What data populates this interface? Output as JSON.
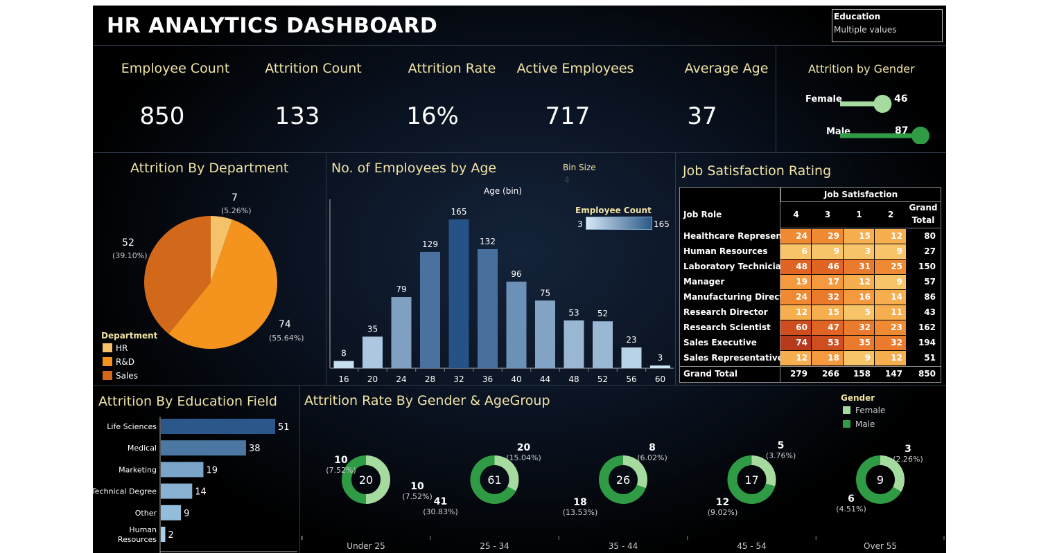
{
  "header": {
    "title": "HR ANALYTICS DASHBOARD"
  },
  "filter": {
    "label": "Education",
    "value": "Multiple values"
  },
  "kpis": [
    {
      "label": "Employee Count",
      "value": "850"
    },
    {
      "label": "Attrition Count",
      "value": "133"
    },
    {
      "label": "Attrition Rate",
      "value": "16%"
    },
    {
      "label": "Active Employees",
      "value": "717"
    },
    {
      "label": "Average Age",
      "value": "37"
    }
  ],
  "gender_panel": {
    "title": "Attrition by Gender",
    "rows": [
      {
        "label": "Female",
        "value": "46",
        "count": 46,
        "color": "#a6dba0"
      },
      {
        "label": "Male",
        "value": "87",
        "count": 87,
        "color": "#2f9b45"
      }
    ]
  },
  "department": {
    "title": "Attrition By Department",
    "legend_title": "Department",
    "slices": [
      {
        "name": "HR",
        "value": 7,
        "label": "7",
        "pct": "(5.26%)",
        "color": "#f6c16b"
      },
      {
        "name": "R&D",
        "value": 74,
        "label": "74",
        "pct": "(55.64%)",
        "color": "#f4941f"
      },
      {
        "name": "Sales",
        "value": 52,
        "label": "52",
        "pct": "(39.10%)",
        "color": "#d2691a"
      }
    ]
  },
  "age_chart": {
    "title": "No. of Employees by Age",
    "axis_title": "Age (bin)",
    "bin_size_label": "Bin Size",
    "bin_size_value": "4",
    "legend_title": "Employee Count",
    "legend_min": "3",
    "legend_max": "165"
  },
  "chart_data": [
    {
      "type": "bar",
      "title": "No. of Employees by Age",
      "xlabel": "Age (bin)",
      "categories": [
        "16",
        "20",
        "24",
        "28",
        "32",
        "36",
        "40",
        "44",
        "48",
        "52",
        "56",
        "60"
      ],
      "values": [
        8,
        35,
        79,
        129,
        165,
        132,
        96,
        75,
        53,
        52,
        23,
        3
      ]
    },
    {
      "type": "pie",
      "title": "Attrition By Department",
      "categories": [
        "HR",
        "R&D",
        "Sales"
      ],
      "values": [
        7,
        74,
        52
      ]
    },
    {
      "type": "bar",
      "title": "Attrition By Education Field",
      "categories": [
        "Life Sciences",
        "Medical",
        "Marketing",
        "Technical Degree",
        "Other",
        "Human Resources"
      ],
      "values": [
        51,
        38,
        19,
        14,
        9,
        2
      ]
    },
    {
      "type": "pie",
      "title": "Attrition Rate By Gender & AgeGroup",
      "categories": [
        "Under 25",
        "25 - 34",
        "35 - 44",
        "45 - 54",
        "Over 55"
      ],
      "series": [
        {
          "name": "Female",
          "values": [
            10,
            20,
            8,
            5,
            3
          ]
        },
        {
          "name": "Male",
          "values": [
            10,
            41,
            18,
            12,
            6
          ]
        }
      ]
    }
  ],
  "job_satisfaction": {
    "title": "Job Satisfaction Rating",
    "header_group": "Job Satisfaction",
    "col_role": "Job Role",
    "cols": [
      "4",
      "3",
      "1",
      "2"
    ],
    "col_total_1": "Grand",
    "col_total_2": "Total",
    "rows": [
      {
        "role": "Healthcare Represen..",
        "vals": [
          24,
          29,
          15,
          12
        ],
        "total": 80
      },
      {
        "role": "Human Resources",
        "vals": [
          6,
          9,
          3,
          9
        ],
        "total": 27
      },
      {
        "role": "Laboratory Technician",
        "vals": [
          48,
          46,
          31,
          25
        ],
        "total": 150
      },
      {
        "role": "Manager",
        "vals": [
          19,
          17,
          12,
          9
        ],
        "total": 57
      },
      {
        "role": "Manufacturing Direct..",
        "vals": [
          24,
          32,
          16,
          14
        ],
        "total": 86
      },
      {
        "role": "Research Director",
        "vals": [
          12,
          15,
          5,
          11
        ],
        "total": 43
      },
      {
        "role": "Research Scientist",
        "vals": [
          60,
          47,
          32,
          23
        ],
        "total": 162
      },
      {
        "role": "Sales Executive",
        "vals": [
          74,
          53,
          35,
          32
        ],
        "total": 194
      },
      {
        "role": "Sales Representative",
        "vals": [
          12,
          18,
          9,
          12
        ],
        "total": 51
      }
    ],
    "grand_total": {
      "role": "Grand Total",
      "vals": [
        279,
        266,
        158,
        147
      ],
      "total": 850
    }
  },
  "education": {
    "title": "Attrition By Education Field",
    "bars": [
      {
        "label": "Life Sciences",
        "value": 51
      },
      {
        "label": "Medical",
        "value": 38
      },
      {
        "label": "Marketing",
        "value": 19
      },
      {
        "label": "Technical Degree",
        "value": 14
      },
      {
        "label": "Other",
        "value": 9
      },
      {
        "label": "Human\nResources",
        "value": 2
      }
    ]
  },
  "age_group": {
    "title": "Attrition Rate By Gender & AgeGroup",
    "legend_title": "Gender",
    "legend": [
      {
        "name": "Female",
        "color": "#a6dba0"
      },
      {
        "name": "Male",
        "color": "#2f9b45"
      }
    ],
    "groups": [
      {
        "name": "Under 25",
        "total": "20",
        "female": 10,
        "female_label": "10",
        "female_pct": "(7.52%)",
        "male": 10,
        "male_label": "10",
        "male_pct": "(7.52%)"
      },
      {
        "name": "25 - 34",
        "total": "61",
        "female": 20,
        "female_label": "20",
        "female_pct": "(15.04%)",
        "male": 41,
        "male_label": "41",
        "male_pct": "(30.83%)"
      },
      {
        "name": "35 - 44",
        "total": "26",
        "female": 8,
        "female_label": "8",
        "female_pct": "(6.02%)",
        "male": 18,
        "male_label": "18",
        "male_pct": "(13.53%)"
      },
      {
        "name": "45 - 54",
        "total": "17",
        "female": 5,
        "female_label": "5",
        "female_pct": "(3.76%)",
        "male": 12,
        "male_label": "12",
        "male_pct": "(9.02%)"
      },
      {
        "name": "Over 55",
        "total": "9",
        "female": 3,
        "female_label": "3",
        "female_pct": "(2.26%)",
        "male": 6,
        "male_label": "6",
        "male_pct": "(4.51%)"
      }
    ]
  }
}
